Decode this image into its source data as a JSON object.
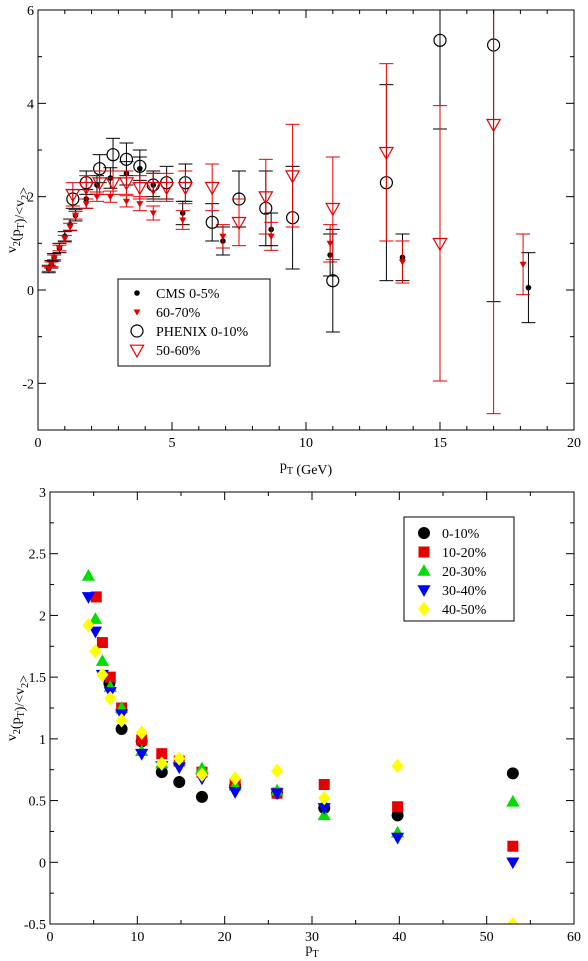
{
  "chart_data": [
    {
      "type": "scatter",
      "title": "",
      "xlabel": "p_T (GeV)",
      "ylabel": "v_2(p_T)/<v_2>",
      "xlim": [
        0,
        20
      ],
      "ylim": [
        -3,
        6
      ],
      "xticks": [
        0,
        5,
        10,
        15,
        20
      ],
      "yticks": [
        -2,
        0,
        2,
        4,
        6
      ],
      "grid": false,
      "legend_position": "bottom-left",
      "series": [
        {
          "name": "CMS 0-5%",
          "marker": "filled-circle",
          "color": "#000000",
          "points": [
            {
              "x": 0.4,
              "y": 0.45,
              "err": 0.08
            },
            {
              "x": 0.5,
              "y": 0.55,
              "err": 0.08
            },
            {
              "x": 0.6,
              "y": 0.7,
              "err": 0.08
            },
            {
              "x": 0.8,
              "y": 0.9,
              "err": 0.1
            },
            {
              "x": 1.0,
              "y": 1.15,
              "err": 0.1
            },
            {
              "x": 1.2,
              "y": 1.4,
              "err": 0.12
            },
            {
              "x": 1.4,
              "y": 1.6,
              "err": 0.12
            },
            {
              "x": 1.8,
              "y": 1.95,
              "err": 0.2
            },
            {
              "x": 2.2,
              "y": 2.25,
              "err": 0.2
            },
            {
              "x": 2.7,
              "y": 2.4,
              "err": 0.22
            },
            {
              "x": 3.3,
              "y": 2.5,
              "err": 0.25
            },
            {
              "x": 3.8,
              "y": 2.6,
              "err": 0.25
            },
            {
              "x": 4.3,
              "y": 2.25,
              "err": 0.25
            },
            {
              "x": 5.4,
              "y": 1.65,
              "err": 0.25
            },
            {
              "x": 6.9,
              "y": 1.05,
              "err": 0.3
            },
            {
              "x": 8.7,
              "y": 1.3,
              "err": 0.35
            },
            {
              "x": 10.9,
              "y": 0.75,
              "err": 0.45
            },
            {
              "x": 13.6,
              "y": 0.7,
              "err": 0.5
            },
            {
              "x": 18.3,
              "y": 0.05,
              "err": 0.75
            }
          ]
        },
        {
          "name": "60-70%",
          "marker": "filled-triangle-down",
          "color": "#e60000",
          "points": [
            {
              "x": 0.4,
              "y": 0.45,
              "err": 0.05
            },
            {
              "x": 0.5,
              "y": 0.55,
              "err": 0.05
            },
            {
              "x": 0.6,
              "y": 0.7,
              "err": 0.05
            },
            {
              "x": 0.8,
              "y": 0.9,
              "err": 0.06
            },
            {
              "x": 1.0,
              "y": 1.1,
              "err": 0.07
            },
            {
              "x": 1.2,
              "y": 1.35,
              "err": 0.08
            },
            {
              "x": 1.4,
              "y": 1.6,
              "err": 0.08
            },
            {
              "x": 1.8,
              "y": 1.85,
              "err": 0.1
            },
            {
              "x": 2.2,
              "y": 2.0,
              "err": 0.1
            },
            {
              "x": 2.7,
              "y": 2.0,
              "err": 0.12
            },
            {
              "x": 3.3,
              "y": 1.9,
              "err": 0.12
            },
            {
              "x": 3.8,
              "y": 1.85,
              "err": 0.15
            },
            {
              "x": 4.3,
              "y": 1.65,
              "err": 0.15
            },
            {
              "x": 5.4,
              "y": 1.5,
              "err": 0.2
            },
            {
              "x": 6.9,
              "y": 1.15,
              "err": 0.25
            },
            {
              "x": 8.7,
              "y": 1.15,
              "err": 0.3
            },
            {
              "x": 10.9,
              "y": 1.0,
              "err": 0.4
            },
            {
              "x": 13.6,
              "y": 0.6,
              "err": 0.45
            },
            {
              "x": 18.1,
              "y": 0.55,
              "err": 0.65
            }
          ]
        },
        {
          "name": "PHENIX 0-10%",
          "marker": "open-circle",
          "color": "#000000",
          "points": [
            {
              "x": 1.3,
              "y": 1.95,
              "err": 0.2
            },
            {
              "x": 1.8,
              "y": 2.3,
              "err": 0.25
            },
            {
              "x": 2.3,
              "y": 2.6,
              "err": 0.3
            },
            {
              "x": 2.8,
              "y": 2.9,
              "err": 0.35
            },
            {
              "x": 3.3,
              "y": 2.8,
              "err": 0.35
            },
            {
              "x": 3.8,
              "y": 2.65,
              "err": 0.35
            },
            {
              "x": 4.3,
              "y": 2.25,
              "err": 0.3
            },
            {
              "x": 4.8,
              "y": 2.3,
              "err": 0.35
            },
            {
              "x": 5.5,
              "y": 2.3,
              "err": 0.4
            },
            {
              "x": 6.5,
              "y": 1.45,
              "err": 0.4
            },
            {
              "x": 7.5,
              "y": 1.95,
              "err": 0.6
            },
            {
              "x": 8.5,
              "y": 1.75,
              "err": 0.8
            },
            {
              "x": 9.5,
              "y": 1.55,
              "err": 1.1
            },
            {
              "x": 11.0,
              "y": 0.2,
              "err": 1.1
            },
            {
              "x": 13.0,
              "y": 2.3,
              "err": 2.1
            },
            {
              "x": 15.0,
              "y": 5.35,
              "err": 1.9
            },
            {
              "x": 17.0,
              "y": 5.25,
              "err": 5.5
            }
          ]
        },
        {
          "name": "50-60%",
          "marker": "open-triangle-down",
          "color": "#e60000",
          "points": [
            {
              "x": 1.3,
              "y": 2.05,
              "err": 0.25
            },
            {
              "x": 1.8,
              "y": 2.2,
              "err": 0.25
            },
            {
              "x": 2.3,
              "y": 2.3,
              "err": 0.25
            },
            {
              "x": 2.8,
              "y": 2.3,
              "err": 0.25
            },
            {
              "x": 3.3,
              "y": 2.3,
              "err": 0.25
            },
            {
              "x": 3.8,
              "y": 2.2,
              "err": 0.25
            },
            {
              "x": 4.3,
              "y": 2.2,
              "err": 0.3
            },
            {
              "x": 4.8,
              "y": 2.2,
              "err": 0.3
            },
            {
              "x": 5.5,
              "y": 2.2,
              "err": 0.35
            },
            {
              "x": 6.5,
              "y": 2.2,
              "err": 0.5
            },
            {
              "x": 7.5,
              "y": 1.45,
              "err": 0.5
            },
            {
              "x": 8.5,
              "y": 2.0,
              "err": 0.8
            },
            {
              "x": 9.5,
              "y": 2.45,
              "err": 1.1
            },
            {
              "x": 11.0,
              "y": 1.75,
              "err": 1.1
            },
            {
              "x": 13.0,
              "y": 2.95,
              "err": 1.9
            },
            {
              "x": 15.0,
              "y": 1.0,
              "err": 2.95
            },
            {
              "x": 17.0,
              "y": 3.55,
              "err": 6.2
            }
          ]
        }
      ]
    },
    {
      "type": "scatter",
      "title": "",
      "xlabel": "p_T",
      "ylabel": "v_2(p_T)/<v_2>",
      "xlim": [
        0,
        60
      ],
      "ylim": [
        -0.5,
        3
      ],
      "xticks": [
        0,
        10,
        20,
        30,
        40,
        50,
        60
      ],
      "yticks": [
        -0.5,
        0,
        0.5,
        1,
        1.5,
        2,
        2.5,
        3
      ],
      "grid": false,
      "legend_position": "top-right",
      "series": [
        {
          "name": "0-10%",
          "marker": "circle",
          "color": "#000000",
          "points": [
            {
              "x": 6.8,
              "y": 1.45
            },
            {
              "x": 8.2,
              "y": 1.08
            },
            {
              "x": 10.5,
              "y": 0.98
            },
            {
              "x": 12.8,
              "y": 0.73
            },
            {
              "x": 14.8,
              "y": 0.65
            },
            {
              "x": 17.4,
              "y": 0.53
            },
            {
              "x": 21.2,
              "y": 0.62
            },
            {
              "x": 26.0,
              "y": 0.56
            },
            {
              "x": 31.4,
              "y": 0.44
            },
            {
              "x": 39.8,
              "y": 0.38
            },
            {
              "x": 53.0,
              "y": 0.72
            }
          ]
        },
        {
          "name": "10-20%",
          "marker": "square",
          "color": "#e60000",
          "points": [
            {
              "x": 5.3,
              "y": 2.15
            },
            {
              "x": 6.0,
              "y": 1.78
            },
            {
              "x": 6.9,
              "y": 1.5
            },
            {
              "x": 8.2,
              "y": 1.25
            },
            {
              "x": 10.5,
              "y": 0.99
            },
            {
              "x": 12.8,
              "y": 0.88
            },
            {
              "x": 14.8,
              "y": 0.82
            },
            {
              "x": 17.4,
              "y": 0.73
            },
            {
              "x": 21.2,
              "y": 0.64
            },
            {
              "x": 26.0,
              "y": 0.56
            },
            {
              "x": 31.4,
              "y": 0.63
            },
            {
              "x": 39.8,
              "y": 0.45
            },
            {
              "x": 53.0,
              "y": 0.13
            }
          ]
        },
        {
          "name": "20-30%",
          "marker": "triangle-up",
          "color": "#00dd00",
          "points": [
            {
              "x": 4.4,
              "y": 2.32
            },
            {
              "x": 5.2,
              "y": 1.97
            },
            {
              "x": 6.0,
              "y": 1.63
            },
            {
              "x": 6.9,
              "y": 1.42
            },
            {
              "x": 8.2,
              "y": 1.25
            },
            {
              "x": 10.5,
              "y": 0.9
            },
            {
              "x": 12.8,
              "y": 0.8
            },
            {
              "x": 14.8,
              "y": 0.82
            },
            {
              "x": 17.4,
              "y": 0.76
            },
            {
              "x": 21.2,
              "y": 0.62
            },
            {
              "x": 26.0,
              "y": 0.58
            },
            {
              "x": 31.4,
              "y": 0.38
            },
            {
              "x": 39.8,
              "y": 0.24
            },
            {
              "x": 53.0,
              "y": 0.49
            }
          ]
        },
        {
          "name": "30-40%",
          "marker": "triangle-down",
          "color": "#0000ff",
          "points": [
            {
              "x": 4.4,
              "y": 2.15
            },
            {
              "x": 5.2,
              "y": 1.87
            },
            {
              "x": 6.0,
              "y": 1.52
            },
            {
              "x": 6.9,
              "y": 1.38
            },
            {
              "x": 8.2,
              "y": 1.2
            },
            {
              "x": 10.5,
              "y": 0.88
            },
            {
              "x": 12.8,
              "y": 0.78
            },
            {
              "x": 14.8,
              "y": 0.77
            },
            {
              "x": 17.4,
              "y": 0.68
            },
            {
              "x": 21.2,
              "y": 0.57
            },
            {
              "x": 26.0,
              "y": 0.56
            },
            {
              "x": 31.4,
              "y": 0.44
            },
            {
              "x": 39.8,
              "y": 0.2
            },
            {
              "x": 53.0,
              "y": 0.0
            }
          ]
        },
        {
          "name": "40-50%",
          "marker": "diamond",
          "color": "#ffff00",
          "points": [
            {
              "x": 4.4,
              "y": 1.92
            },
            {
              "x": 5.2,
              "y": 1.71
            },
            {
              "x": 6.0,
              "y": 1.52
            },
            {
              "x": 6.9,
              "y": 1.33
            },
            {
              "x": 8.2,
              "y": 1.15
            },
            {
              "x": 10.5,
              "y": 1.05
            },
            {
              "x": 12.8,
              "y": 0.8
            },
            {
              "x": 14.8,
              "y": 0.84
            },
            {
              "x": 17.4,
              "y": 0.71
            },
            {
              "x": 21.2,
              "y": 0.68
            },
            {
              "x": 26.0,
              "y": 0.74
            },
            {
              "x": 31.4,
              "y": 0.52
            },
            {
              "x": 39.8,
              "y": 0.78
            },
            {
              "x": 53.0,
              "y": -0.5
            }
          ]
        }
      ]
    }
  ]
}
